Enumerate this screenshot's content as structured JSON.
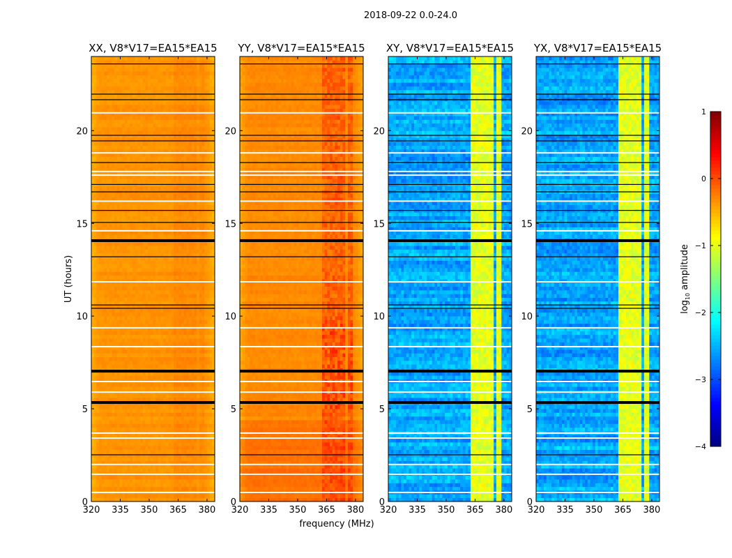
{
  "chart_data": {
    "type": "heatmap",
    "title": "2018-09-22 0.0-24.0",
    "xlabel": "frequency (MHz)",
    "ylabel": "UT (hours)",
    "xlim": [
      320,
      384
    ],
    "ylim": [
      0,
      24
    ],
    "xticks": [
      320,
      335,
      350,
      365,
      380
    ],
    "yticks": [
      0,
      5,
      10,
      15,
      20
    ],
    "panels": [
      {
        "title": "XX, V8*V17=EA15*EA15",
        "baseline": -0.35,
        "noise": 0.08,
        "rfi_level": 0.0,
        "early_offset": 0.0
      },
      {
        "title": "YY, V8*V17=EA15*EA15",
        "baseline": -0.3,
        "noise": 0.08,
        "rfi_level": 0.35,
        "early_offset": 0.12
      },
      {
        "title": "XY, V8*V17=EA15*EA15",
        "baseline": -2.55,
        "noise": 0.35,
        "rfi_level": -1.0,
        "early_offset": 0.0
      },
      {
        "title": "YX, V8*V17=EA15*EA15",
        "baseline": -2.55,
        "noise": 0.35,
        "rfi_level": -1.0,
        "early_offset": 0.0
      }
    ],
    "rfi_bands_mhz": [
      [
        363,
        366
      ],
      [
        367,
        370
      ],
      [
        371,
        374.5
      ],
      [
        376,
        379
      ]
    ],
    "flagged_rows_hours": [
      20.96,
      18.8,
      17.8,
      17.6,
      16.2,
      14.6,
      11.85,
      9.37,
      8.35,
      6.47,
      5.9,
      3.69,
      3.42,
      2.0,
      1.47,
      0.49
    ],
    "black_rows_hours": [
      23.6,
      21.97,
      21.67,
      19.75,
      19.45,
      18.28,
      17.1,
      16.7,
      15.7,
      15.05,
      13.2,
      10.6,
      10.42,
      2.52
    ],
    "thick_black_rows_hours": [
      14.07,
      7.03,
      5.34
    ],
    "colorbar": {
      "label": "log10 amplitude",
      "label_main": "log",
      "label_sub": "10",
      "label_rest": " amplitude",
      "colormap": "jet",
      "vmin": -4,
      "vmax": 1,
      "ticks": [
        1,
        0,
        -1,
        -2,
        -3,
        -4
      ],
      "tick_labels": [
        "1",
        "0",
        "−1",
        "−2",
        "−3",
        "−4"
      ]
    }
  }
}
